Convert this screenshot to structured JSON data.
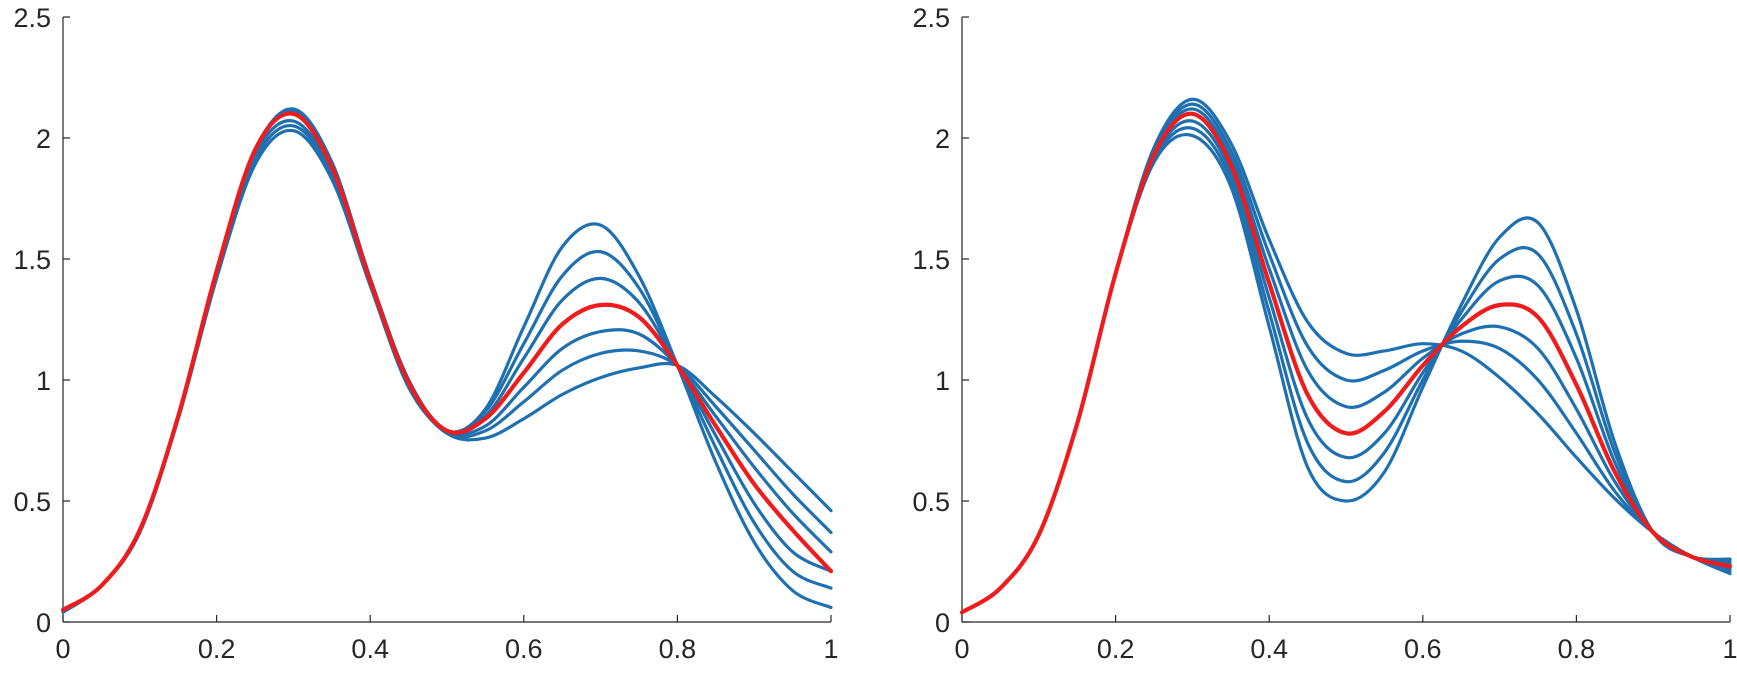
{
  "chart_data": [
    {
      "type": "line",
      "xlim": [
        0,
        1
      ],
      "ylim": [
        0,
        2.5
      ],
      "xticks": [
        "0",
        "0.2",
        "0.4",
        "0.6",
        "0.8",
        "1"
      ],
      "yticks": [
        "0",
        "0.5",
        "1",
        "1.5",
        "2",
        "2.5"
      ],
      "grid": false,
      "legend": "none",
      "colors": {
        "family": "#1f70b0",
        "highlight": "#ee1c1c"
      },
      "highlight_index": 3,
      "series": [
        {
          "x": [
            0,
            0.05,
            0.1,
            0.15,
            0.2,
            0.25,
            0.3,
            0.35,
            0.4,
            0.45,
            0.5,
            0.55,
            0.6,
            0.65,
            0.7,
            0.75,
            0.8,
            0.85,
            0.9,
            0.95,
            1
          ],
          "y": [
            0.05,
            0.15,
            0.38,
            0.85,
            1.45,
            1.95,
            2.12,
            1.9,
            1.42,
            1.0,
            0.79,
            0.88,
            1.22,
            1.55,
            1.64,
            1.43,
            1.06,
            0.66,
            0.33,
            0.13,
            0.06
          ]
        },
        {
          "x": [
            0,
            0.05,
            0.1,
            0.15,
            0.2,
            0.25,
            0.3,
            0.35,
            0.4,
            0.45,
            0.5,
            0.55,
            0.6,
            0.65,
            0.7,
            0.75,
            0.8,
            0.85,
            0.9,
            0.95,
            1
          ],
          "y": [
            0.05,
            0.15,
            0.38,
            0.85,
            1.45,
            1.95,
            2.11,
            1.9,
            1.42,
            1.0,
            0.79,
            0.87,
            1.15,
            1.43,
            1.53,
            1.38,
            1.06,
            0.72,
            0.41,
            0.21,
            0.14
          ]
        },
        {
          "x": [
            0,
            0.05,
            0.1,
            0.15,
            0.2,
            0.25,
            0.3,
            0.35,
            0.4,
            0.45,
            0.5,
            0.55,
            0.6,
            0.65,
            0.7,
            0.75,
            0.8,
            0.85,
            0.9,
            0.95,
            1
          ],
          "y": [
            0.05,
            0.15,
            0.38,
            0.85,
            1.45,
            1.95,
            2.11,
            1.89,
            1.42,
            1.0,
            0.79,
            0.85,
            1.09,
            1.33,
            1.42,
            1.32,
            1.06,
            0.77,
            0.49,
            0.29,
            0.21
          ]
        },
        {
          "x": [
            0,
            0.05,
            0.1,
            0.15,
            0.2,
            0.25,
            0.3,
            0.35,
            0.4,
            0.45,
            0.5,
            0.55,
            0.6,
            0.65,
            0.7,
            0.75,
            0.8,
            0.85,
            0.9,
            0.95,
            1
          ],
          "y": [
            0.05,
            0.15,
            0.38,
            0.85,
            1.45,
            1.95,
            2.1,
            1.88,
            1.41,
            0.99,
            0.79,
            0.84,
            1.03,
            1.23,
            1.31,
            1.26,
            1.06,
            0.81,
            0.57,
            0.38,
            0.21
          ]
        },
        {
          "x": [
            0,
            0.05,
            0.1,
            0.15,
            0.2,
            0.25,
            0.3,
            0.35,
            0.4,
            0.45,
            0.5,
            0.55,
            0.6,
            0.65,
            0.7,
            0.75,
            0.8,
            0.85,
            0.9,
            0.95,
            1
          ],
          "y": [
            0.05,
            0.15,
            0.38,
            0.85,
            1.44,
            1.93,
            2.07,
            1.86,
            1.4,
            0.99,
            0.79,
            0.81,
            0.97,
            1.13,
            1.2,
            1.19,
            1.06,
            0.85,
            0.64,
            0.45,
            0.29
          ]
        },
        {
          "x": [
            0,
            0.05,
            0.1,
            0.15,
            0.2,
            0.25,
            0.3,
            0.35,
            0.4,
            0.45,
            0.5,
            0.55,
            0.6,
            0.65,
            0.7,
            0.75,
            0.8,
            0.85,
            0.9,
            0.95,
            1
          ],
          "y": [
            0.05,
            0.15,
            0.38,
            0.84,
            1.43,
            1.91,
            2.05,
            1.85,
            1.4,
            0.98,
            0.78,
            0.79,
            0.91,
            1.04,
            1.11,
            1.12,
            1.06,
            0.89,
            0.71,
            0.53,
            0.37
          ]
        },
        {
          "x": [
            0,
            0.05,
            0.1,
            0.15,
            0.2,
            0.25,
            0.3,
            0.35,
            0.4,
            0.45,
            0.5,
            0.55,
            0.6,
            0.65,
            0.7,
            0.75,
            0.8,
            0.85,
            0.9,
            0.95,
            1
          ],
          "y": [
            0.04,
            0.15,
            0.37,
            0.84,
            1.42,
            1.89,
            2.03,
            1.83,
            1.39,
            0.97,
            0.78,
            0.76,
            0.84,
            0.94,
            1.01,
            1.05,
            1.06,
            0.93,
            0.78,
            0.62,
            0.46
          ]
        }
      ]
    },
    {
      "type": "line",
      "xlim": [
        0,
        1
      ],
      "ylim": [
        0,
        2.5
      ],
      "xticks": [
        "0",
        "0.2",
        "0.4",
        "0.6",
        "0.8",
        "1"
      ],
      "yticks": [
        "0",
        "0.5",
        "1",
        "1.5",
        "2",
        "2.5"
      ],
      "grid": false,
      "legend": "none",
      "colors": {
        "family": "#1f70b0",
        "highlight": "#ee1c1c"
      },
      "highlight_index": 3,
      "series": [
        {
          "x": [
            0,
            0.05,
            0.1,
            0.15,
            0.2,
            0.25,
            0.3,
            0.35,
            0.4,
            0.45,
            0.5,
            0.55,
            0.6,
            0.65,
            0.7,
            0.75,
            0.8,
            0.85,
            0.9,
            0.95,
            1
          ],
          "y": [
            0.04,
            0.14,
            0.36,
            0.82,
            1.44,
            1.96,
            2.16,
            1.98,
            1.58,
            1.24,
            1.11,
            1.12,
            1.15,
            1.12,
            1.01,
            0.86,
            0.68,
            0.51,
            0.37,
            0.27,
            0.2
          ]
        },
        {
          "x": [
            0,
            0.05,
            0.1,
            0.15,
            0.2,
            0.25,
            0.3,
            0.35,
            0.4,
            0.45,
            0.5,
            0.55,
            0.6,
            0.65,
            0.7,
            0.75,
            0.8,
            0.85,
            0.9,
            0.95,
            1
          ],
          "y": [
            0.04,
            0.14,
            0.36,
            0.82,
            1.44,
            1.95,
            2.14,
            1.95,
            1.52,
            1.14,
            1.0,
            1.04,
            1.12,
            1.16,
            1.13,
            1.0,
            0.78,
            0.54,
            0.37,
            0.27,
            0.21
          ]
        },
        {
          "x": [
            0,
            0.05,
            0.1,
            0.15,
            0.2,
            0.25,
            0.3,
            0.35,
            0.4,
            0.45,
            0.5,
            0.55,
            0.6,
            0.65,
            0.7,
            0.75,
            0.8,
            0.85,
            0.9,
            0.95,
            1
          ],
          "y": [
            0.04,
            0.14,
            0.36,
            0.82,
            1.44,
            1.94,
            2.12,
            1.92,
            1.46,
            1.04,
            0.89,
            0.95,
            1.09,
            1.19,
            1.22,
            1.13,
            0.88,
            0.58,
            0.37,
            0.27,
            0.22
          ]
        },
        {
          "x": [
            0,
            0.05,
            0.1,
            0.15,
            0.2,
            0.25,
            0.3,
            0.35,
            0.4,
            0.45,
            0.5,
            0.55,
            0.6,
            0.65,
            0.7,
            0.75,
            0.8,
            0.85,
            0.9,
            0.95,
            1
          ],
          "y": [
            0.04,
            0.14,
            0.36,
            0.82,
            1.44,
            1.93,
            2.1,
            1.89,
            1.4,
            0.94,
            0.78,
            0.87,
            1.06,
            1.22,
            1.31,
            1.26,
            0.98,
            0.62,
            0.37,
            0.27,
            0.23
          ]
        },
        {
          "x": [
            0,
            0.05,
            0.1,
            0.15,
            0.2,
            0.25,
            0.3,
            0.35,
            0.4,
            0.45,
            0.5,
            0.55,
            0.6,
            0.65,
            0.7,
            0.75,
            0.8,
            0.85,
            0.9,
            0.95,
            1
          ],
          "y": [
            0.04,
            0.14,
            0.36,
            0.82,
            1.44,
            1.92,
            2.07,
            1.86,
            1.34,
            0.84,
            0.68,
            0.78,
            1.03,
            1.25,
            1.41,
            1.39,
            1.09,
            0.66,
            0.37,
            0.27,
            0.24
          ]
        },
        {
          "x": [
            0,
            0.05,
            0.1,
            0.15,
            0.2,
            0.25,
            0.3,
            0.35,
            0.4,
            0.45,
            0.5,
            0.55,
            0.6,
            0.65,
            0.7,
            0.75,
            0.8,
            0.85,
            0.9,
            0.95,
            1
          ],
          "y": [
            0.04,
            0.14,
            0.36,
            0.82,
            1.44,
            1.91,
            2.04,
            1.83,
            1.28,
            0.74,
            0.58,
            0.7,
            1.0,
            1.28,
            1.5,
            1.52,
            1.19,
            0.7,
            0.37,
            0.27,
            0.25
          ]
        },
        {
          "x": [
            0,
            0.05,
            0.1,
            0.15,
            0.2,
            0.25,
            0.3,
            0.35,
            0.4,
            0.45,
            0.5,
            0.55,
            0.6,
            0.65,
            0.7,
            0.75,
            0.8,
            0.85,
            0.9,
            0.95,
            1
          ],
          "y": [
            0.04,
            0.14,
            0.36,
            0.82,
            1.44,
            1.9,
            2.01,
            1.8,
            1.22,
            0.64,
            0.5,
            0.62,
            0.97,
            1.31,
            1.59,
            1.65,
            1.29,
            0.74,
            0.37,
            0.27,
            0.26
          ]
        }
      ]
    }
  ]
}
